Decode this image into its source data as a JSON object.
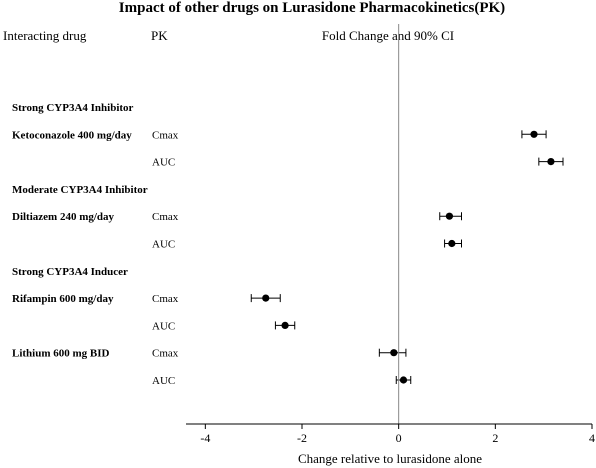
{
  "chart_data": {
    "type": "forest",
    "title": "Impact of other drugs on Lurasidone Pharmacokinetics(PK)",
    "column_headers": {
      "drug": "Interacting drug",
      "pk": "PK",
      "effect": "Fold Change and 90% CI"
    },
    "xlabel": "Change relative to lurasidone alone",
    "xlim": [
      -4.4,
      4
    ],
    "xticks": [
      "-4",
      "-2",
      "0",
      "2",
      "4"
    ],
    "reference_line": 0,
    "rows": [
      {
        "kind": "group",
        "label": "Strong CYP3A4 Inhibitor"
      },
      {
        "kind": "data",
        "drug": "Ketoconazole 400 mg/day",
        "pk": "Cmax",
        "estimate": 2.8,
        "lower": 2.55,
        "upper": 3.05
      },
      {
        "kind": "data",
        "drug": "",
        "pk": "AUC",
        "estimate": 3.15,
        "lower": 2.9,
        "upper": 3.4
      },
      {
        "kind": "group",
        "label": "Moderate CYP3A4 Inhibitor"
      },
      {
        "kind": "data",
        "drug": "Diltiazem 240 mg/day",
        "pk": "Cmax",
        "estimate": 1.05,
        "lower": 0.85,
        "upper": 1.3
      },
      {
        "kind": "data",
        "drug": "",
        "pk": "AUC",
        "estimate": 1.1,
        "lower": 0.95,
        "upper": 1.3
      },
      {
        "kind": "group",
        "label": "Strong CYP3A4 Inducer"
      },
      {
        "kind": "data",
        "drug": "Rifampin 600 mg/day",
        "pk": "Cmax",
        "estimate": -2.75,
        "lower": -3.05,
        "upper": -2.45
      },
      {
        "kind": "data",
        "drug": "",
        "pk": "AUC",
        "estimate": -2.35,
        "lower": -2.55,
        "upper": -2.15
      },
      {
        "kind": "data",
        "drug": "Lithium 600 mg BID",
        "pk": "Cmax",
        "estimate": -0.1,
        "lower": -0.4,
        "upper": 0.15
      },
      {
        "kind": "data",
        "drug": "",
        "pk": "AUC",
        "estimate": 0.1,
        "lower": -0.05,
        "upper": 0.25
      }
    ]
  }
}
